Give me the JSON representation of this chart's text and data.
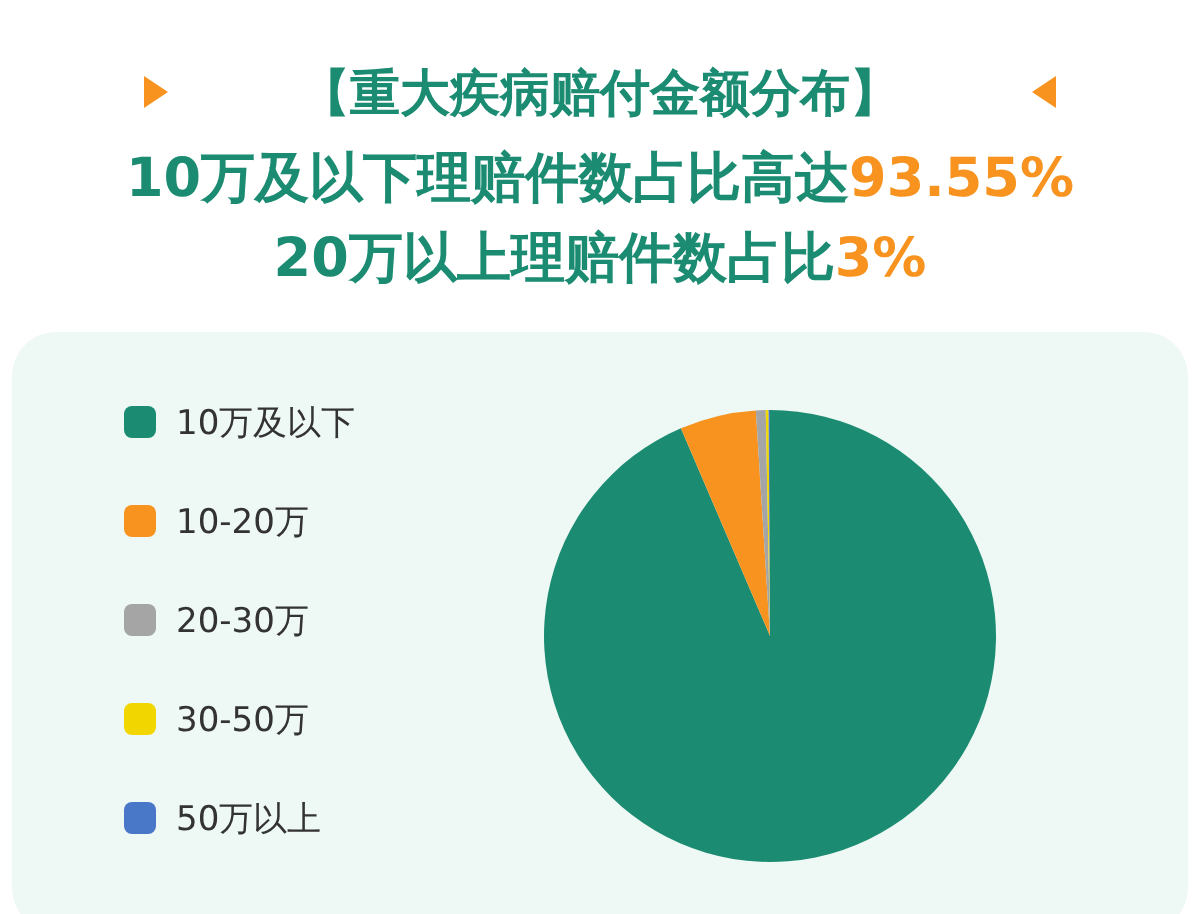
{
  "chart_data": {
    "type": "pie",
    "title": "【重大疾病赔付金额分布】",
    "subtitle": "10万及以下理赔件数占比高达93.55%",
    "annotations": [
      "20万以上理赔件数占比3%"
    ],
    "categories": [
      "10万及以下",
      "10-20万",
      "20-30万",
      "30-50万",
      "50万以上"
    ],
    "values": [
      93.55,
      5.45,
      0.7,
      0.2,
      0.1
    ],
    "colors": [
      "#1b8c72",
      "#f7931e",
      "#a5a5a5",
      "#f2d600",
      "#4a78c8"
    ],
    "legend": "left"
  }
}
